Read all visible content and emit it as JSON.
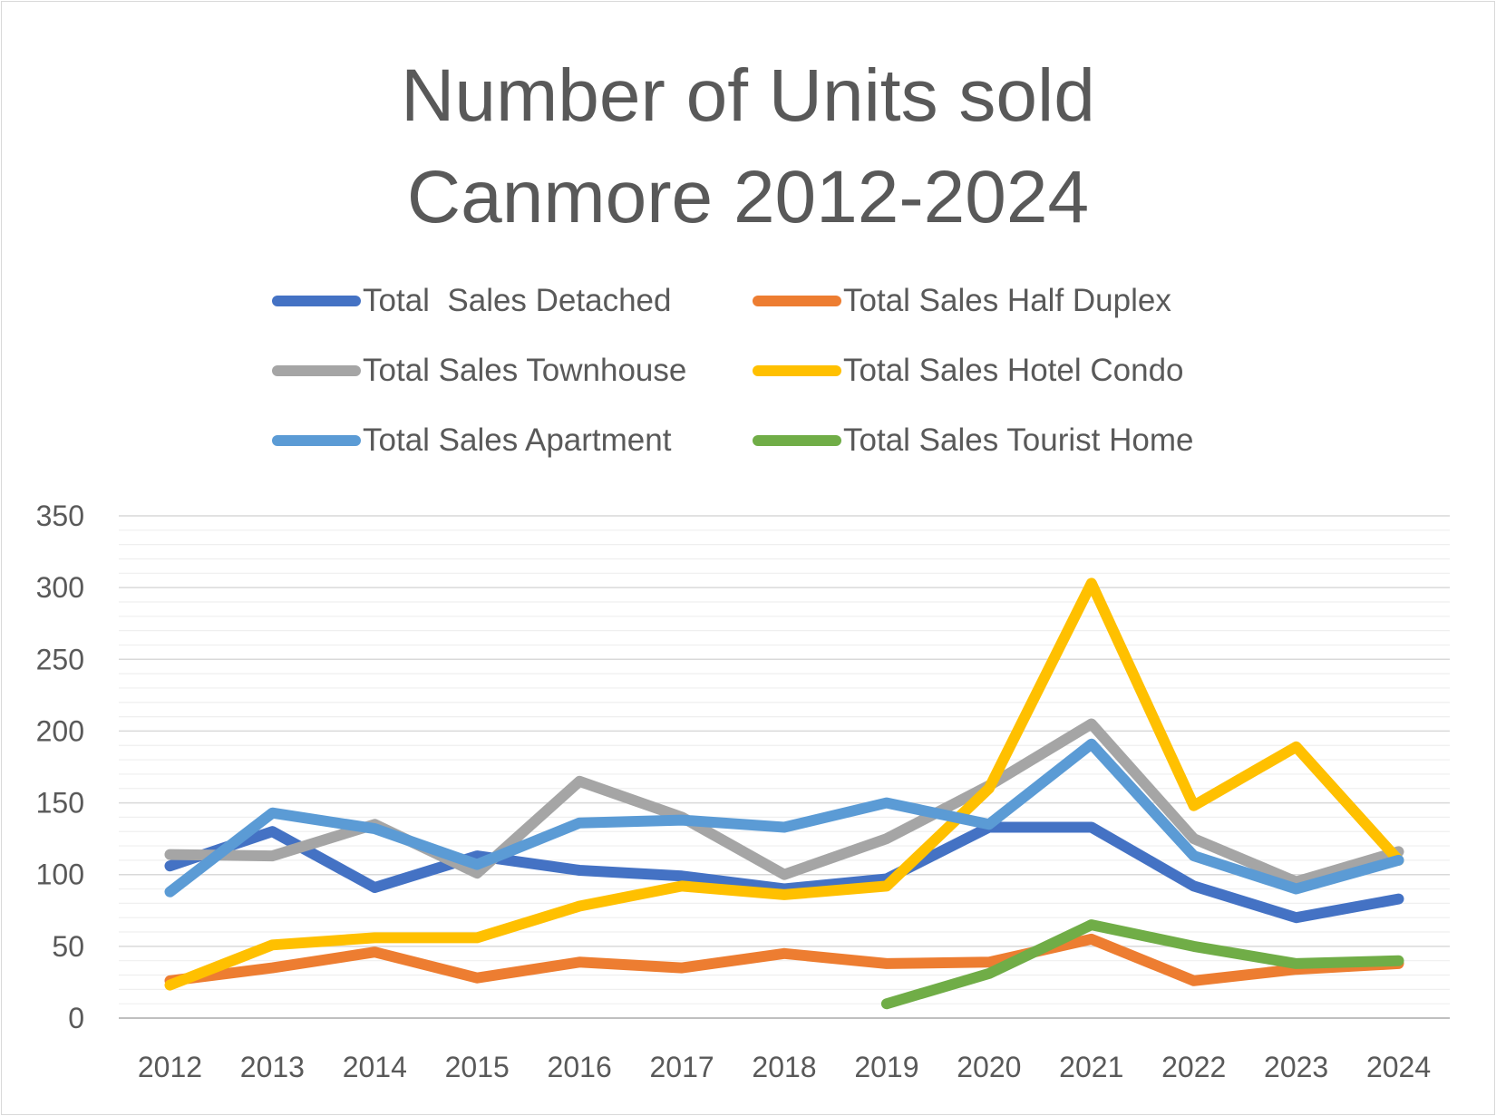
{
  "chart_data": {
    "type": "line",
    "title_lines": [
      "Number of Units sold",
      "Canmore 2012-2024"
    ],
    "xlabel": "",
    "ylabel": "",
    "ylim": [
      0,
      350
    ],
    "yticks": [
      "0",
      "50",
      "100",
      "150",
      "200",
      "250",
      "300",
      "350"
    ],
    "ytick_values": [
      0,
      50,
      100,
      150,
      200,
      250,
      300,
      350
    ],
    "categories": [
      "2012",
      "2013",
      "2014",
      "2015",
      "2016",
      "2017",
      "2018",
      "2019",
      "2020",
      "2021",
      "2022",
      "2023",
      "2024"
    ],
    "grid": "on",
    "legend_placement": "top",
    "series": [
      {
        "name": "Total  Sales Detached",
        "color": "#4472c4",
        "values": [
          106,
          130,
          91,
          113,
          103,
          99,
          90,
          97,
          133,
          133,
          92,
          70,
          83
        ]
      },
      {
        "name": "Total Sales Half Duplex",
        "color": "#ed7d31",
        "values": [
          26,
          35,
          46,
          28,
          39,
          35,
          45,
          38,
          39,
          55,
          26,
          34,
          38
        ]
      },
      {
        "name": "Total Sales Townhouse",
        "color": "#a5a5a5",
        "values": [
          114,
          113,
          135,
          101,
          165,
          140,
          100,
          125,
          162,
          205,
          125,
          95,
          116
        ]
      },
      {
        "name": "Total Sales Hotel Condo",
        "color": "#ffc000",
        "values": [
          23,
          51,
          56,
          56,
          78,
          92,
          86,
          92,
          160,
          303,
          148,
          189,
          110
        ]
      },
      {
        "name": "Total Sales Apartment",
        "color": "#5b9bd5",
        "values": [
          88,
          143,
          132,
          107,
          136,
          138,
          133,
          150,
          135,
          191,
          113,
          90,
          110
        ]
      },
      {
        "name": "Total Sales Tourist Home",
        "color": "#70ad47",
        "values": [
          null,
          null,
          null,
          null,
          null,
          null,
          null,
          10,
          31,
          65,
          50,
          38,
          40
        ]
      }
    ]
  }
}
